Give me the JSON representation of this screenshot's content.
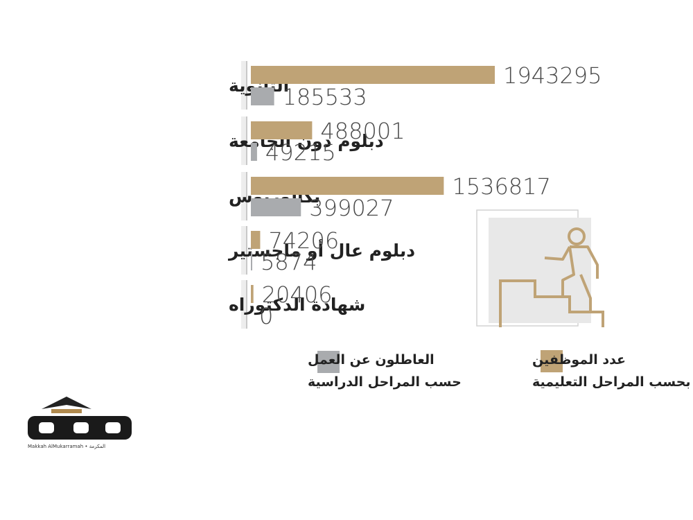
{
  "chart_data": {
    "type": "bar",
    "orientation": "horizontal",
    "categories": [
      "الثانوية",
      "دبلوم دون الجامعة",
      "بكالوريوس",
      "دبلوم عال أو ماجستير",
      "شهادة الدكتوراه"
    ],
    "series": [
      {
        "name": "عدد الموظفين بحسب المراحل التعليمية",
        "color": "#bfa376",
        "values": [
          1943295,
          488001,
          1536817,
          74206,
          20406
        ]
      },
      {
        "name": "العاطلون عن العمل حسب المراحل الدراسية",
        "color": "#a9abae",
        "values": [
          185533,
          49215,
          399027,
          5874,
          0
        ]
      }
    ],
    "xlim": [
      0,
      1943295
    ],
    "grid": false,
    "legend_position": "bottom"
  },
  "legend": {
    "employed_line1": "عدد الموظفين",
    "employed_line2": "بحسب المراحل التعليمية",
    "unemployed_line1": "العاطلون عن العمل",
    "unemployed_line2": "حسب المراحل الدراسية"
  },
  "colors": {
    "employed": "#bfa376",
    "unemployed": "#a9abae",
    "label_panel": "#ededed",
    "divider": "#c8c8c8"
  },
  "logo": {
    "text": "مكة",
    "subtitle": "Makkah AlMukarramah • المكرمة"
  },
  "icons": {
    "illustration": "person-climbing-stairs-icon"
  }
}
